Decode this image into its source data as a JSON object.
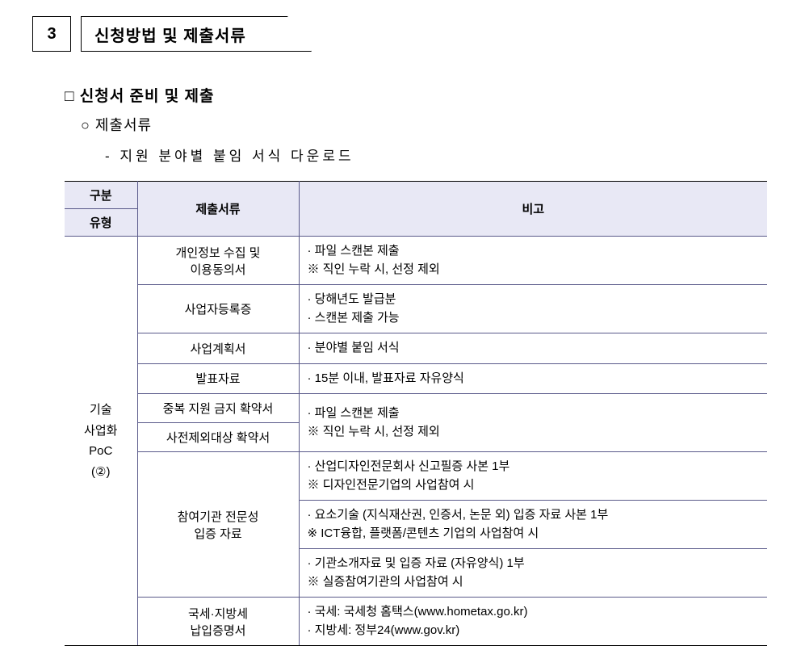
{
  "header": {
    "number": "3",
    "title": "신청방법 및 제출서류"
  },
  "subsection": "□ 신청서 준비 및 제출",
  "subsub": "○ 제출서류",
  "dashline": "- 지원 분야별 붙임 서식 다운로드",
  "table": {
    "headers": {
      "category": "구분",
      "type": "유형",
      "documents": "제출서류",
      "remarks": "비고"
    },
    "typeLabel": "기술\n사업화\nPoC\n(②)",
    "rows": [
      {
        "doc": "개인정보 수집 및\n이용동의서",
        "remark": "· 파일 스캔본 제출\n   ※ 직인 누락 시, 선정 제외"
      },
      {
        "doc": "사업자등록증",
        "remark": "· 당해년도 발급분\n· 스캔본 제출 가능"
      },
      {
        "doc": "사업계획서",
        "remark": "· 분야별 붙임 서식"
      },
      {
        "doc": "발표자료",
        "remark": "· 15분 이내, 발표자료 자유양식"
      },
      {
        "doc": "중복 지원 금지 확약서",
        "remarkMerged": "· 파일 스캔본 제출\n   ※ 직인 누락 시, 선정 제외"
      },
      {
        "doc": "사전제외대상 확약서"
      },
      {
        "doc": "참여기관 전문성\n입증 자료",
        "remarks3": [
          "· 산업디자인전문회사 신고필증 사본 1부\n ※ 디자인전문기업의 사업참여 시",
          "· 요소기술 (지식재산권, 인증서, 논문 외) 입증 자료 사본 1부\n ※ ICT융합, 플랫폼/콘텐츠 기업의 사업참여 시",
          "· 기관소개자료 및 입증 자료 (자유양식) 1부\n ※ 실증참여기관의 사업참여 시"
        ]
      },
      {
        "doc": "국세·지방세\n납입증명서",
        "remark": "· 국세: 국세청 홈택스(www.hometax.go.kr)\n· 지방세: 정부24(www.gov.kr)"
      }
    ]
  }
}
